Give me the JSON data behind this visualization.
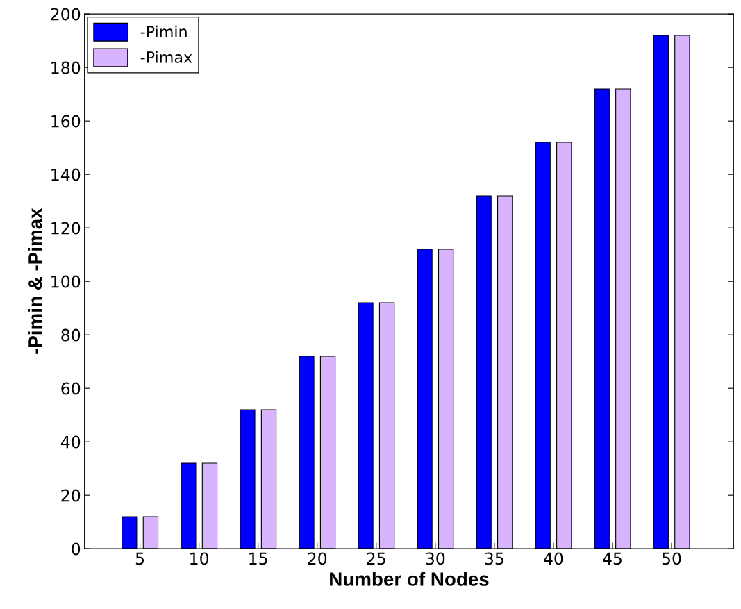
{
  "chart_data": {
    "type": "bar",
    "xlabel": "Number of Nodes",
    "ylabel": "-Pimin & -Pimax",
    "categories": [
      "5",
      "10",
      "15",
      "20",
      "25",
      "30",
      "35",
      "40",
      "45",
      "50"
    ],
    "series": [
      {
        "name": "-Pimin",
        "color": "#0000ff",
        "values": [
          12,
          32,
          52,
          72,
          92,
          112,
          132,
          152,
          172,
          192
        ]
      },
      {
        "name": "-Pimax",
        "color": "#d8b4fe",
        "values": [
          12,
          32,
          52,
          72,
          92,
          112,
          132,
          152,
          172,
          192
        ]
      }
    ],
    "ylim": [
      0,
      200
    ],
    "yticks": [
      0,
      20,
      40,
      60,
      80,
      100,
      120,
      140,
      160,
      180,
      200
    ],
    "grid": false,
    "legend": "top left"
  }
}
